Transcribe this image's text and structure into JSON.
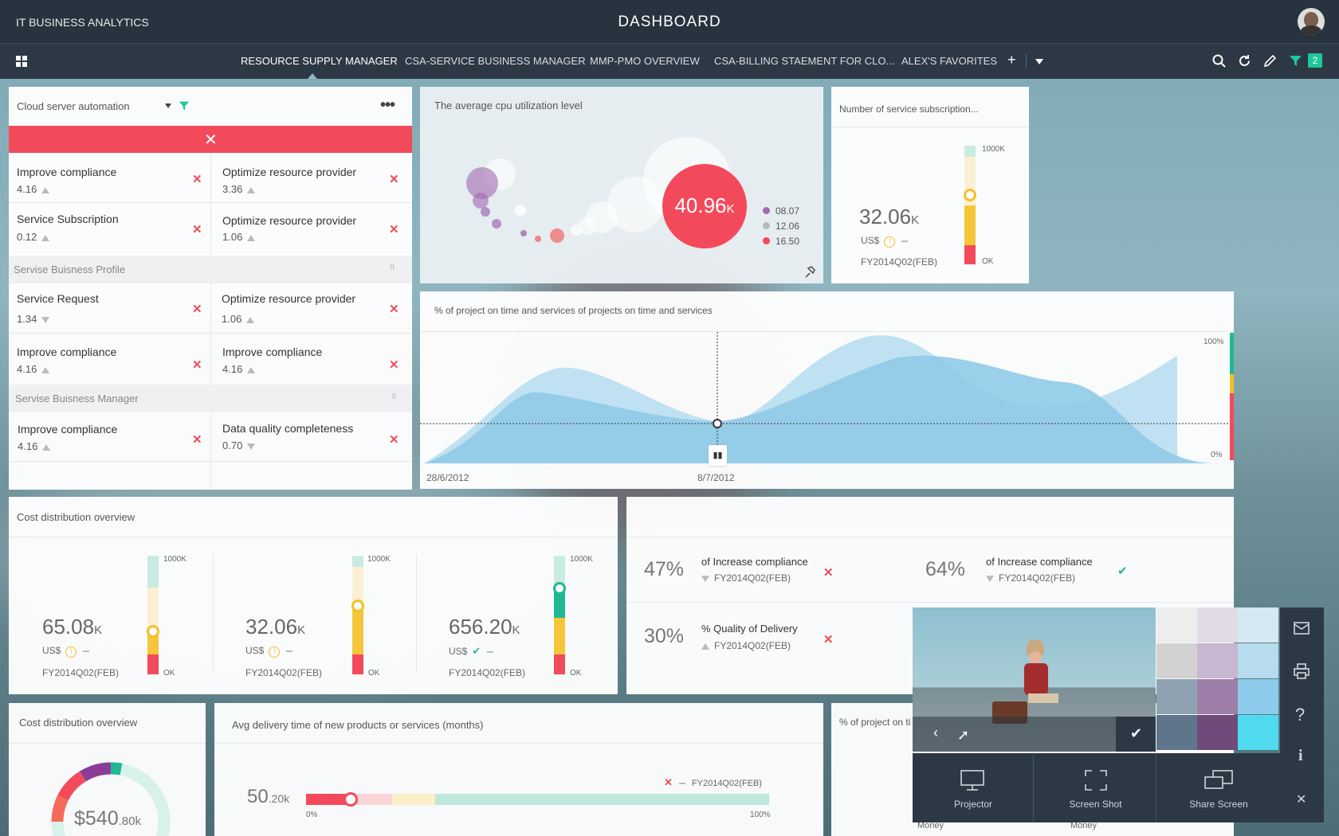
{
  "app": {
    "title": "IT BUSINESS ANALYTICS",
    "page_title": "DASHBOARD"
  },
  "nav": {
    "tabs": [
      "RESOURCE SUPPLY MANAGER",
      "CSA-SERVICE BUSINESS MANAGER",
      "MMP-PMO OVERVIEW",
      "CSA-BILLING STAEMENT FOR CLO...",
      "ALEX'S FAVORITES"
    ],
    "add": "+",
    "filter_count": "2"
  },
  "kpi_list": {
    "selector": "Cloud server automation",
    "rows": [
      {
        "l_label": "Improve compliance",
        "l_value": "4.16",
        "r_label": "Optimize resource provider",
        "r_value": "3.36"
      },
      {
        "l_label": "Service Subscription",
        "l_value": "0.12",
        "r_label": "Optimize resource provider",
        "r_value": "1.06"
      }
    ],
    "section1": "Servise Buisness Profile",
    "rows2": [
      {
        "l_label": "Service Request",
        "l_value": "1.34",
        "r_label": "Optimize resource provider",
        "r_value": "1.06"
      },
      {
        "l_label": "Improve compliance",
        "l_value": "4.16",
        "r_label": "Improve compliance",
        "r_value": "4.16"
      }
    ],
    "section2": "Servise Buisness Manager",
    "rows3": [
      {
        "l_label": "Improve compliance",
        "l_value": "4.16",
        "r_label": "Data quality completeness",
        "r_value": "0.70"
      }
    ]
  },
  "cpu": {
    "title": "The average cpu utilization level",
    "value": "40.96",
    "unit": "K",
    "legend": [
      {
        "label": "08.07",
        "color": "#a169b0"
      },
      {
        "label": "12.06",
        "color": "#b8b8b8"
      },
      {
        "label": "16.50",
        "color": "#f04a5a"
      }
    ]
  },
  "subs": {
    "title": "Number of service subscription...",
    "value": "32.06",
    "unit": "K",
    "currency": "US$",
    "period": "FY2014Q02(FEB)",
    "top": "1000K",
    "bottom": "OK"
  },
  "area": {
    "title": "% of project on time and services of projects on time and services",
    "y_top": "100%",
    "y_bottom": "0%",
    "x_start": "28/6/2012",
    "x_mid": "8/7/2012"
  },
  "cost": {
    "title": "Cost distribution overview",
    "items": [
      {
        "value": "65.08",
        "unit": "K",
        "currency": "US$",
        "period": "FY2014Q02(FEB)",
        "top": "1000K",
        "bottom": "OK"
      },
      {
        "value": "32.06",
        "unit": "K",
        "currency": "US$",
        "period": "FY2014Q02(FEB)",
        "top": "1000K",
        "bottom": "OK"
      },
      {
        "value": "656.20",
        "unit": "K",
        "currency": "US$",
        "period": "FY2014Q02(FEB)",
        "top": "1000K",
        "bottom": "OK"
      }
    ]
  },
  "compliance": {
    "items": [
      {
        "pct": "47%",
        "label": "of Increase compliance",
        "period": "FY2014Q02(FEB)"
      },
      {
        "pct": "64%",
        "label": "of Increase compliance",
        "period": "FY2014Q02(FEB)"
      },
      {
        "pct": "30%",
        "label": "% Quality of Delivery",
        "period": "FY2014Q02(FEB)"
      }
    ]
  },
  "donut": {
    "title": "Cost distribution overview",
    "value": "$540",
    "unit": ".80k"
  },
  "delivery": {
    "title": "Avg delivery time of new products or services (months)",
    "value": "50",
    "unit": ".20k",
    "period": "FY2014Q02(FEB)",
    "min": "0%",
    "max": "100%"
  },
  "partial": {
    "title": "% of project on ti",
    "money1": "Money",
    "money2": "Money"
  },
  "overlay": {
    "actions": [
      {
        "label": "Projector"
      },
      {
        "label": "Screen Shot"
      },
      {
        "label": "Share Screen"
      }
    ],
    "swatches": [
      "#ededed",
      "#e1dbe6",
      "#d6e8f1",
      "#d2d2d2",
      "#c8b7d0",
      "#b6dcee",
      "#8fa2b1",
      "#9c7ea9",
      "#8ecbea",
      "#5f7589",
      "#6e4b7b",
      "#4fdaf0"
    ]
  }
}
